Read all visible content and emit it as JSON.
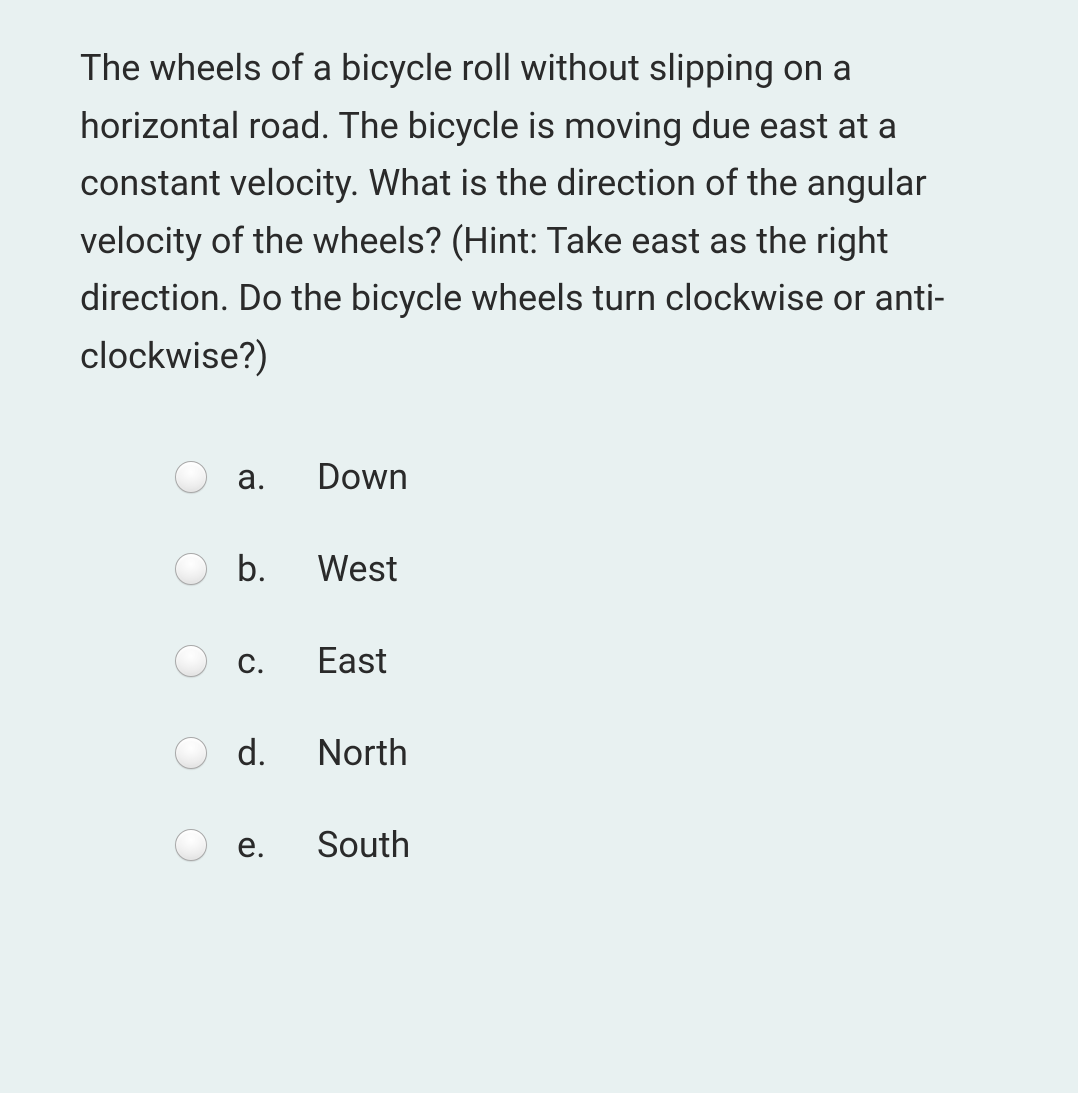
{
  "background_color": "#e8f1f1",
  "text_color": "#2a2a2a",
  "question": {
    "text": "The wheels of a bicycle roll without slipping on a horizontal road. The bicycle is moving due east at a constant velocity. What is the direction of the angular velocity of the wheels? (Hint: Take east as the right direction. Do the bicycle wheels turn clockwise or anti-clockwise?)",
    "font_size": 36
  },
  "options": [
    {
      "letter": "a.",
      "text": "Down",
      "selected": false
    },
    {
      "letter": "b.",
      "text": "West",
      "selected": false
    },
    {
      "letter": "c.",
      "text": "East",
      "selected": false
    },
    {
      "letter": "d.",
      "text": "North",
      "selected": false
    },
    {
      "letter": "e.",
      "text": "South",
      "selected": false
    }
  ],
  "radio_style": {
    "size": 32,
    "border_color": "#a8a8a8",
    "background_gradient_top": "#ffffff",
    "background_gradient_bottom": "#e4e4e4"
  }
}
